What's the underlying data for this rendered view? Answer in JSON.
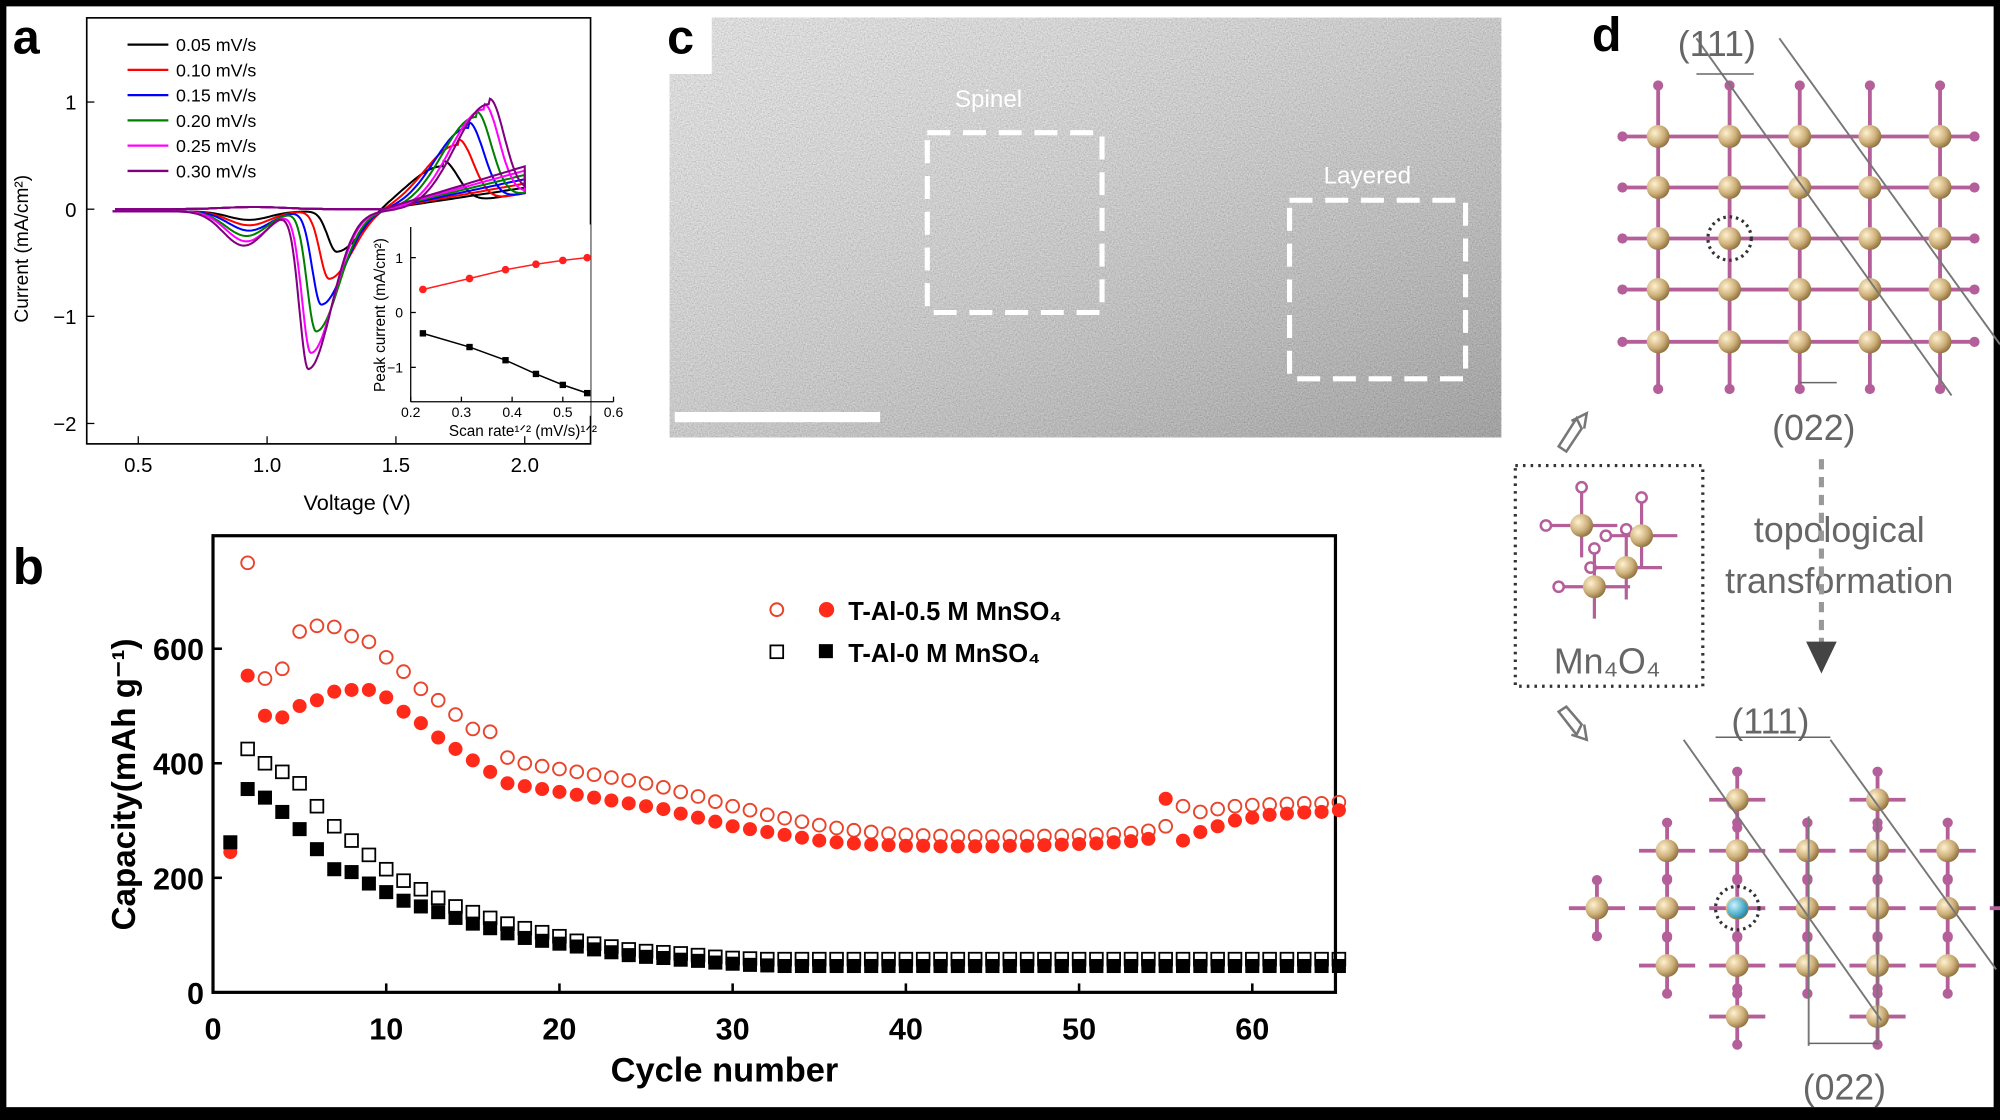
{
  "panel_labels": {
    "a": "a",
    "b": "b",
    "c": "c",
    "d": "d"
  },
  "colors": {
    "red_open": "#e8452c",
    "red_filled": "#ff2a1a",
    "black": "#000000",
    "tan": "#cdb07a",
    "pink": "#b45f9a",
    "cyan": "#2aa7c9"
  },
  "chart_data": [
    {
      "id": "a",
      "type": "line",
      "title": "",
      "xlabel": "Voltage (V)",
      "ylabel": "Current (mA/cm²)",
      "xlim": [
        0.3,
        2.26
      ],
      "ylim": [
        -2.19,
        1.79
      ],
      "xticks": [
        "0.5",
        "1.0",
        "1.5",
        "2.0"
      ],
      "xtick_values": [
        0.5,
        1.0,
        1.5,
        2.0
      ],
      "yticks": [
        "1",
        "0",
        "−1",
        "−2"
      ],
      "ytick_values": [
        1,
        0,
        -1,
        -2
      ],
      "series": [
        {
          "name": "0.05 mV/s",
          "color": "#000000",
          "cathodic_peak": [
            1.27,
            -0.38
          ],
          "shoulder": [
            0.93,
            -0.08
          ],
          "anodic_peak": [
            1.68,
            0.42
          ]
        },
        {
          "name": "0.10 mV/s",
          "color": "#ff0000",
          "cathodic_peak": [
            1.24,
            -0.63
          ],
          "shoulder": [
            0.93,
            -0.13
          ],
          "anodic_peak": [
            1.74,
            0.62
          ]
        },
        {
          "name": "0.15 mV/s",
          "color": "#0000ff",
          "cathodic_peak": [
            1.21,
            -0.87
          ],
          "shoulder": [
            0.93,
            -0.18
          ],
          "anodic_peak": [
            1.78,
            0.78
          ]
        },
        {
          "name": "0.20 mV/s",
          "color": "#008000",
          "cathodic_peak": [
            1.19,
            -1.12
          ],
          "shoulder": [
            0.92,
            -0.23
          ],
          "anodic_peak": [
            1.81,
            0.88
          ]
        },
        {
          "name": "0.25 mV/s",
          "color": "#ff00ff",
          "cathodic_peak": [
            1.17,
            -1.32
          ],
          "shoulder": [
            0.92,
            -0.28
          ],
          "anodic_peak": [
            1.84,
            0.95
          ]
        },
        {
          "name": "0.30 mV/s",
          "color": "#800080",
          "cathodic_peak": [
            1.16,
            -1.47
          ],
          "shoulder": [
            0.91,
            -0.32
          ],
          "anodic_peak": [
            1.86,
            1.0
          ]
        }
      ],
      "inset": {
        "type": "scatter-line",
        "xlabel": "Scan rate¹ᐟ² (mV/s)¹ᐟ²",
        "ylabel": "Peak current (mA/cm²)",
        "xlim": [
          0.2,
          0.6
        ],
        "ylim": [
          -1.6,
          1.55
        ],
        "xticks": [
          "0.2",
          "0.3",
          "0.4",
          "0.5",
          "0.6"
        ],
        "xtick_values": [
          0.2,
          0.3,
          0.4,
          0.5,
          0.6
        ],
        "yticks": [
          "1",
          "0",
          "−1"
        ],
        "ytick_values": [
          1,
          0,
          -1
        ],
        "x": [
          0.224,
          0.316,
          0.387,
          0.447,
          0.5,
          0.548
        ],
        "series": [
          {
            "name": "anodic",
            "color": "#ff2020",
            "marker": "circle",
            "values": [
              0.42,
              0.62,
              0.78,
              0.88,
              0.95,
              1.0
            ]
          },
          {
            "name": "cathodic",
            "color": "#000000",
            "marker": "square",
            "values": [
              -0.38,
              -0.63,
              -0.87,
              -1.12,
              -1.32,
              -1.47
            ]
          }
        ]
      }
    },
    {
      "id": "b",
      "type": "scatter",
      "title": "",
      "xlabel": "Cycle number",
      "ylabel": "Capacity(mAh g⁻¹)",
      "xlim": [
        0,
        64.8
      ],
      "ylim": [
        0,
        797
      ],
      "xticks": [
        "0",
        "10",
        "20",
        "30",
        "40",
        "50",
        "60"
      ],
      "xtick_values": [
        0,
        10,
        20,
        30,
        40,
        50,
        60
      ],
      "yticks": [
        "0",
        "200",
        "400",
        "600"
      ],
      "ytick_values": [
        0,
        200,
        400,
        600
      ],
      "legend_position": "top-right",
      "legend": [
        {
          "label": "T-Al-0.5 M MnSO₄"
        },
        {
          "label": "T-Al-0 M MnSO₄"
        }
      ],
      "series": [
        {
          "name": "T-Al-0.5 M MnSO4 (open)",
          "marker": "open-circle",
          "color": "#e8452c",
          "start_cycle": 2,
          "values": [
            750,
            548,
            565,
            630,
            640,
            638,
            622,
            612,
            585,
            560,
            530,
            510,
            485,
            460,
            455,
            410,
            400,
            395,
            390,
            385,
            380,
            375,
            370,
            365,
            358,
            350,
            342,
            333,
            325,
            318,
            310,
            304,
            298,
            292,
            287,
            283,
            280,
            277,
            275,
            274,
            273,
            272,
            272,
            272,
            272,
            272,
            273,
            273,
            274,
            275,
            276,
            278,
            282,
            290,
            325,
            315,
            320,
            325,
            327,
            328,
            329,
            330,
            330,
            332
          ]
        },
        {
          "name": "T-Al-0.5 M MnSO4 (filled)",
          "marker": "filled-circle",
          "color": "#ff2a1a",
          "start_cycle": 1,
          "values": [
            245,
            553,
            483,
            480,
            500,
            510,
            525,
            528,
            528,
            515,
            490,
            470,
            445,
            425,
            405,
            385,
            365,
            360,
            355,
            350,
            345,
            340,
            335,
            330,
            325,
            320,
            312,
            305,
            298,
            290,
            285,
            280,
            275,
            270,
            265,
            262,
            260,
            258,
            257,
            256,
            256,
            255,
            255,
            255,
            255,
            256,
            256,
            257,
            258,
            259,
            260,
            262,
            264,
            268,
            338,
            265,
            280,
            290,
            300,
            305,
            310,
            312,
            314,
            315,
            318
          ]
        },
        {
          "name": "T-Al-0 M MnSO4 (open)",
          "marker": "open-square",
          "color": "#000000",
          "start_cycle": 2,
          "values": [
            425,
            400,
            385,
            365,
            325,
            290,
            265,
            240,
            215,
            195,
            180,
            165,
            150,
            140,
            130,
            120,
            112,
            105,
            98,
            90,
            85,
            80,
            75,
            72,
            70,
            68,
            65,
            62,
            60,
            59,
            58,
            58,
            58,
            58,
            58,
            58,
            58,
            58,
            58,
            58,
            58,
            58,
            58,
            58,
            58,
            58,
            58,
            58,
            58,
            58,
            58,
            58,
            58,
            58,
            58,
            58,
            58,
            58,
            58,
            58,
            58,
            58,
            58,
            58
          ]
        },
        {
          "name": "T-Al-0 M MnSO4 (filled)",
          "marker": "filled-square",
          "color": "#000000",
          "start_cycle": 1,
          "values": [
            262,
            355,
            340,
            315,
            285,
            250,
            215,
            210,
            190,
            175,
            160,
            150,
            140,
            130,
            120,
            112,
            103,
            95,
            90,
            85,
            80,
            75,
            70,
            65,
            62,
            60,
            57,
            55,
            52,
            50,
            48,
            47,
            46,
            46,
            46,
            46,
            46,
            46,
            46,
            46,
            46,
            46,
            46,
            46,
            46,
            46,
            46,
            46,
            46,
            46,
            46,
            46,
            46,
            46,
            46,
            46,
            46,
            46,
            46,
            46,
            46,
            46,
            46,
            46,
            46
          ]
        }
      ]
    }
  ],
  "panel_c": {
    "region_1": "Spinel",
    "region_2": "Layered"
  },
  "panel_d": {
    "top_plane_1": "(111)",
    "top_plane_2": "(022)",
    "unit_label": "Mn₄O₄",
    "transform_line1": "topological",
    "transform_line2": "transformation",
    "bottom_plane_1": "(111)",
    "bottom_plane_2": "(022)"
  }
}
